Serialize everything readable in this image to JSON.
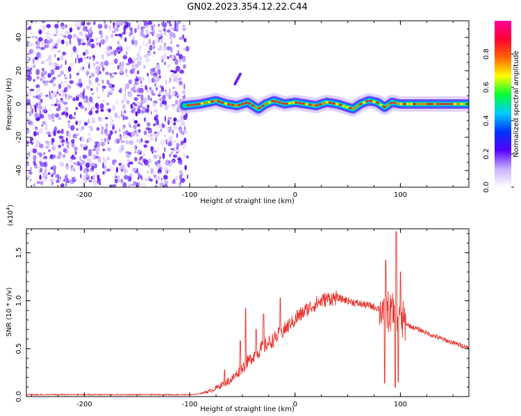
{
  "title": "GN02.2023.354.12.22.C44",
  "chart_data": [
    {
      "type": "heatmap",
      "xlabel": "Height of straight line (km)",
      "ylabel": "Frequency (Hz)",
      "xlim": [
        -255,
        165
      ],
      "ylim": [
        -50,
        50
      ],
      "x_ticks": [
        -200,
        -100,
        0,
        100
      ],
      "x_tick_labels": [
        "-200",
        "-100",
        "0",
        "100"
      ],
      "y_ticks": [
        -40,
        -20,
        0,
        20,
        40
      ],
      "y_tick_labels": [
        "-40",
        "-20",
        "0",
        "20",
        "40"
      ],
      "noise_region_x": [
        -255,
        -102
      ],
      "ridge": {
        "x_start": -105,
        "x_end": 165,
        "frequency": 0,
        "wiggle_points": [
          [
            -105,
            -1
          ],
          [
            -90,
            0
          ],
          [
            -75,
            2
          ],
          [
            -65,
            0
          ],
          [
            -55,
            -1
          ],
          [
            -45,
            1
          ],
          [
            -35,
            -3
          ],
          [
            -28,
            0
          ],
          [
            -20,
            2
          ],
          [
            -10,
            0
          ],
          [
            0,
            1
          ],
          [
            10,
            0
          ],
          [
            20,
            -1
          ],
          [
            30,
            1
          ],
          [
            40,
            0
          ],
          [
            50,
            -2
          ],
          [
            55,
            -3
          ],
          [
            62,
            0
          ],
          [
            70,
            2
          ],
          [
            78,
            1
          ],
          [
            85,
            -2
          ],
          [
            92,
            1
          ],
          [
            100,
            0
          ],
          [
            120,
            0
          ],
          [
            165,
            0
          ]
        ]
      },
      "streak": {
        "x": [
          -57,
          -52
        ],
        "frequency": [
          12,
          18
        ]
      },
      "colorbar": {
        "label": "Normalized spectral amplitude",
        "range": [
          0,
          1
        ],
        "ticks": [
          0.0,
          0.2,
          0.4,
          0.6,
          0.8
        ],
        "tick_labels": [
          "0.0",
          "0.2",
          "0.4",
          "0.6",
          "0.8"
        ],
        "colors": [
          "#ffffff",
          "#c8b0ff",
          "#5500ff",
          "#0033ff",
          "#00ccff",
          "#00ff33",
          "#ffff00",
          "#ff6600",
          "#ff0033",
          "#ff0099"
        ]
      }
    },
    {
      "type": "line",
      "xlabel": "Height of straight line (km)",
      "ylabel": "SNR (10 * v/v)",
      "y_multiplier_label": "(x10",
      "y_multiplier_exp": "4",
      "y_multiplier_close": ")",
      "xlim": [
        -255,
        165
      ],
      "ylim": [
        0,
        1.75
      ],
      "x_ticks": [
        -200,
        -100,
        0,
        100
      ],
      "x_tick_labels": [
        "-200",
        "-100",
        "0",
        "100"
      ],
      "y_ticks": [
        0.0,
        0.5,
        1.0,
        1.5
      ],
      "y_tick_labels": [
        "0.0",
        "0.5",
        "1.0",
        "1.5"
      ],
      "color": "#e8302a",
      "envelope": [
        [
          -255,
          0.02
        ],
        [
          -150,
          0.02
        ],
        [
          -95,
          0.02
        ],
        [
          -80,
          0.06
        ],
        [
          -70,
          0.12
        ],
        [
          -60,
          0.18
        ],
        [
          -50,
          0.3
        ],
        [
          -40,
          0.42
        ],
        [
          -30,
          0.52
        ],
        [
          -20,
          0.6
        ],
        [
          -10,
          0.7
        ],
        [
          0,
          0.8
        ],
        [
          10,
          0.9
        ],
        [
          20,
          0.97
        ],
        [
          30,
          1.02
        ],
        [
          40,
          1.03
        ],
        [
          50,
          1.0
        ],
        [
          60,
          0.97
        ],
        [
          70,
          0.95
        ],
        [
          80,
          0.92
        ],
        [
          90,
          0.88
        ],
        [
          100,
          0.8
        ],
        [
          110,
          0.73
        ],
        [
          120,
          0.69
        ],
        [
          130,
          0.64
        ],
        [
          140,
          0.6
        ],
        [
          150,
          0.56
        ],
        [
          165,
          0.51
        ]
      ],
      "spikes": [
        [
          -67,
          0.28
        ],
        [
          -52,
          0.58
        ],
        [
          -47,
          0.92
        ],
        [
          -37,
          0.7
        ],
        [
          -30,
          0.86
        ],
        [
          -14,
          1.03
        ],
        [
          2,
          0.9
        ],
        [
          -4,
          0.75
        ],
        [
          84,
          1.0
        ],
        [
          86,
          1.42
        ],
        [
          92,
          0.98
        ],
        [
          96,
          1.72
        ],
        [
          98,
          1.68
        ],
        [
          100,
          1.3
        ]
      ],
      "dips": [
        [
          85,
          0.14
        ],
        [
          95,
          0.1
        ],
        [
          98,
          0.15
        ]
      ]
    }
  ]
}
